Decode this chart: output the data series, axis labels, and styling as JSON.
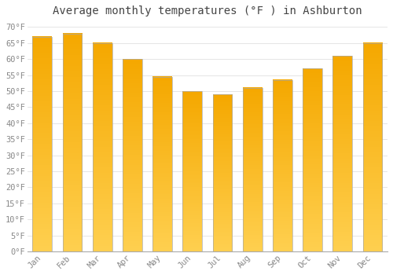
{
  "title": "Average monthly temperatures (°F ) in Ashburton",
  "months": [
    "Jan",
    "Feb",
    "Mar",
    "Apr",
    "May",
    "Jun",
    "Jul",
    "Aug",
    "Sep",
    "Oct",
    "Nov",
    "Dec"
  ],
  "values": [
    67,
    68,
    65,
    60,
    54.5,
    50,
    49,
    51,
    53.5,
    57,
    61,
    65
  ],
  "bar_color_top": "#F5A800",
  "bar_color_bottom": "#FFD050",
  "bar_edge_color": "#aaaaaa",
  "background_color": "#ffffff",
  "grid_color": "#e0e0e0",
  "ylim": [
    0,
    72
  ],
  "yticks": [
    0,
    5,
    10,
    15,
    20,
    25,
    30,
    35,
    40,
    45,
    50,
    55,
    60,
    65,
    70
  ],
  "title_fontsize": 10,
  "tick_fontsize": 7.5,
  "tick_font_color": "#888888",
  "title_color": "#444444",
  "font_family": "monospace",
  "bar_width": 0.65
}
